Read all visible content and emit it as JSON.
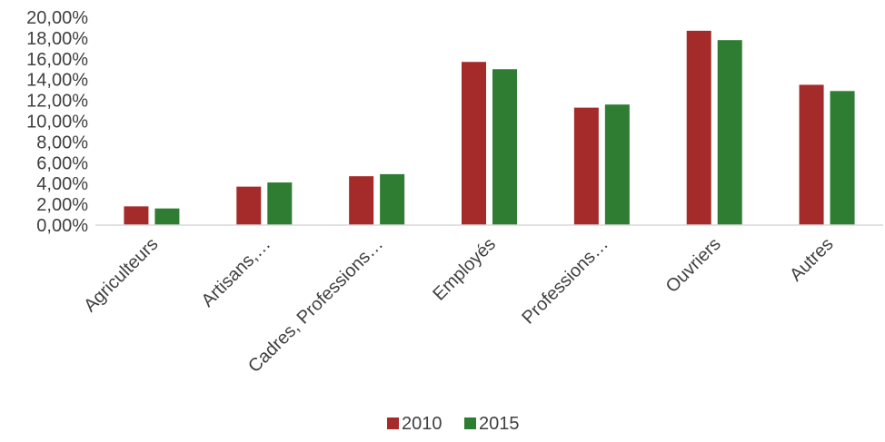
{
  "chart_data": {
    "type": "bar",
    "categories": [
      "Agriculteurs",
      "Artisans,…",
      "Cadres, Professions…",
      "Employés",
      "Professions…",
      "Ouvriers",
      "Autres"
    ],
    "series": [
      {
        "name": "2010",
        "color": "#a52a2a",
        "values": [
          1.8,
          3.7,
          4.7,
          15.7,
          11.3,
          18.7,
          13.5
        ]
      },
      {
        "name": "2015",
        "color": "#2e7d32",
        "values": [
          1.6,
          4.1,
          4.9,
          15.0,
          11.6,
          17.8,
          12.9
        ]
      }
    ],
    "ylim": [
      0,
      20
    ],
    "yticks": [
      "0,00%",
      "2,00%",
      "4,00%",
      "6,00%",
      "8,00%",
      "10,00%",
      "12,00%",
      "14,00%",
      "16,00%",
      "18,00%",
      "20,00%"
    ],
    "grid": false,
    "legend_position": "bottom-center"
  }
}
